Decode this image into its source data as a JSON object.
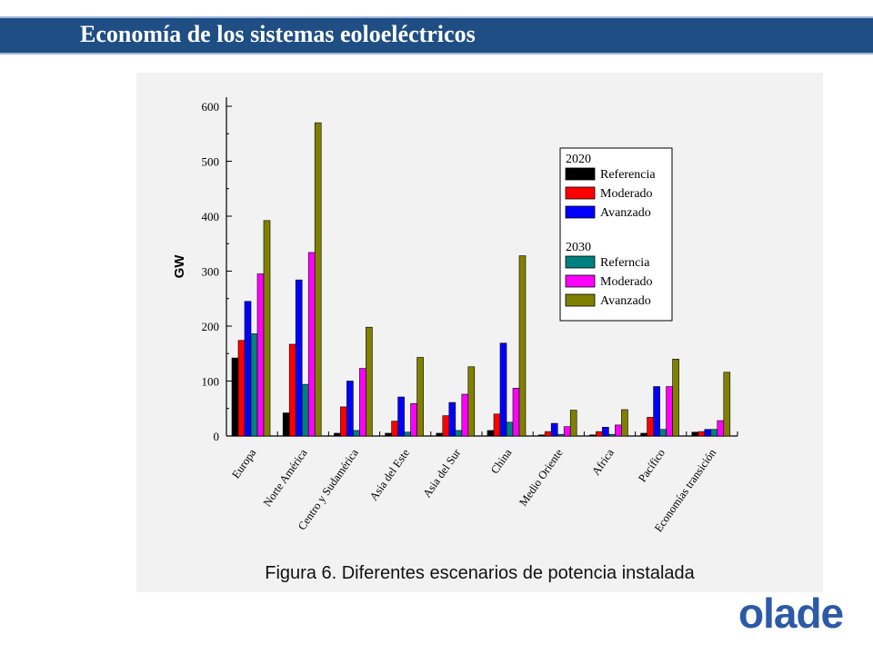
{
  "header": {
    "title": "Economía de los sistemas eoloeléctricos"
  },
  "caption": "Figura 6. Diferentes escenarios de potencia instalada",
  "logo": {
    "text": "olade",
    "color": "#2d5aa8"
  },
  "chart_data": {
    "type": "bar",
    "title": "",
    "xlabel": "",
    "ylabel": "GW",
    "ylim": [
      0,
      600
    ],
    "yticks": [
      0,
      100,
      200,
      300,
      400,
      500,
      600
    ],
    "grid": false,
    "legend_position": "top-right",
    "categories": [
      "Europa",
      "Norte América",
      "Centro y Sudamérica",
      "Asia del Este",
      "Asia del Sur",
      "China",
      "Medio Oriente",
      "Africa",
      "Pacífico",
      "Economías transición"
    ],
    "legend_groups": [
      {
        "title": "2020",
        "series": [
          0,
          1,
          2
        ]
      },
      {
        "title": "2030",
        "series": [
          3,
          4,
          5
        ]
      }
    ],
    "series": [
      {
        "name": "Referencia",
        "group": "2020",
        "color": "#000000",
        "values": [
          142,
          42,
          5,
          5,
          5,
          10,
          2,
          2,
          5,
          7
        ]
      },
      {
        "name": "Moderado",
        "group": "2020",
        "color": "#ff0000",
        "values": [
          174,
          167,
          53,
          27,
          37,
          40,
          8,
          8,
          34,
          8
        ]
      },
      {
        "name": "Avanzado",
        "group": "2020",
        "color": "#0000ff",
        "values": [
          245,
          284,
          100,
          71,
          61,
          169,
          23,
          16,
          90,
          12
        ]
      },
      {
        "name": "Referncia",
        "group": "2030",
        "color": "#008080",
        "values": [
          186,
          94,
          10,
          7,
          10,
          25,
          3,
          3,
          12,
          12
        ]
      },
      {
        "name": "Moderado",
        "group": "2030",
        "color": "#ff00ff",
        "values": [
          295,
          334,
          123,
          59,
          76,
          87,
          17,
          20,
          90,
          28
        ]
      },
      {
        "name": "Avanzado",
        "group": "2030",
        "color": "#808000",
        "values": [
          392,
          570,
          198,
          143,
          126,
          328,
          47,
          48,
          140,
          116
        ]
      }
    ]
  }
}
